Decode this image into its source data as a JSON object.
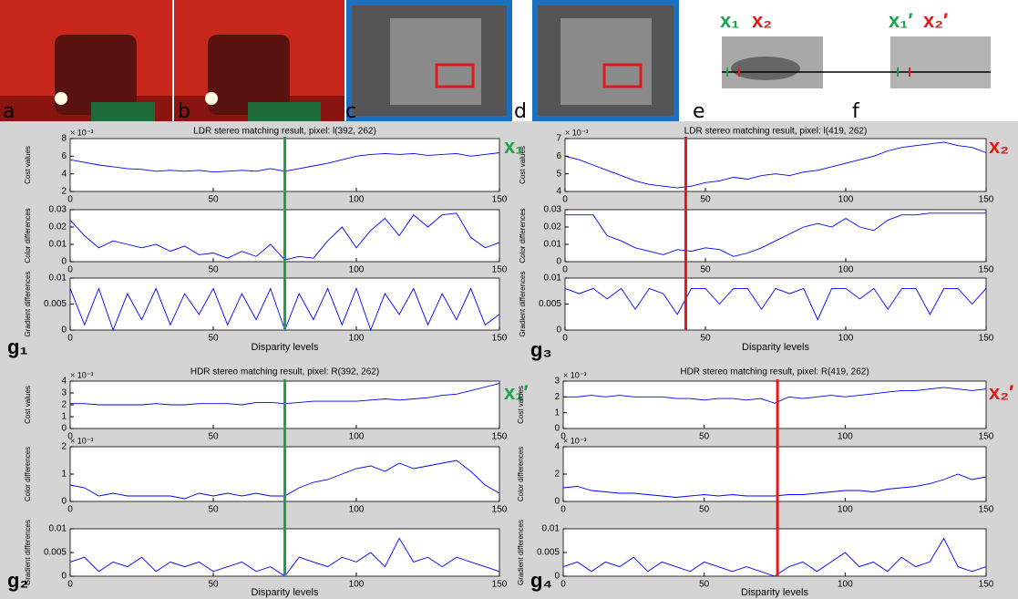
{
  "figure": {
    "image_labels": [
      "a",
      "b",
      "c",
      "d",
      "e",
      "f"
    ],
    "point_labels": [
      "x₁",
      "x₂",
      "x₁′",
      "x₂′"
    ]
  },
  "chart_data": [
    {
      "type": "line",
      "label": "g₁",
      "title": "LDR stereo matching result, pixel: l(392, 262)",
      "xlabel": "Disparity levels",
      "xlim": [
        0,
        150
      ],
      "xticks": [
        0,
        50,
        100,
        150
      ],
      "x": [
        0,
        5,
        10,
        15,
        20,
        25,
        30,
        35,
        40,
        45,
        50,
        55,
        60,
        65,
        70,
        75,
        80,
        85,
        90,
        95,
        100,
        105,
        110,
        115,
        120,
        125,
        130,
        135,
        140,
        145,
        150
      ],
      "marker": {
        "x": 75,
        "label": "x₁",
        "color": "#1aa34a"
      },
      "panels": [
        {
          "ylabel": "Cost values",
          "exponent_label": "× 10⁻³",
          "ylim": [
            2,
            8
          ],
          "yticks": [
            2,
            4,
            6,
            8
          ],
          "color": "#0000ff",
          "values": [
            5.6,
            5.3,
            5.0,
            4.8,
            4.6,
            4.5,
            4.3,
            4.4,
            4.3,
            4.4,
            4.2,
            4.3,
            4.4,
            4.3,
            4.6,
            4.3,
            4.6,
            4.9,
            5.2,
            5.6,
            6.0,
            6.2,
            6.3,
            6.2,
            6.3,
            6.1,
            6.2,
            6.3,
            6.0,
            6.2,
            6.4
          ]
        },
        {
          "ylabel": "Color differences",
          "ylim": [
            0,
            0.03
          ],
          "yticks": [
            0,
            0.01,
            0.02,
            0.03
          ],
          "color": "#0000ff",
          "values": [
            0.024,
            0.015,
            0.008,
            0.012,
            0.01,
            0.008,
            0.01,
            0.006,
            0.009,
            0.004,
            0.005,
            0.002,
            0.006,
            0.003,
            0.01,
            0.001,
            0.003,
            0.002,
            0.012,
            0.02,
            0.008,
            0.018,
            0.025,
            0.015,
            0.027,
            0.02,
            0.027,
            0.028,
            0.014,
            0.008,
            0.011
          ]
        },
        {
          "ylabel": "Gradient differences",
          "ylim": [
            0,
            0.01
          ],
          "yticks": [
            0,
            0.005,
            0.01
          ],
          "color": "#0000ff",
          "values": [
            0.008,
            0.001,
            0.008,
            0,
            0.007,
            0.002,
            0.008,
            0.001,
            0.007,
            0.003,
            0.008,
            0.001,
            0.007,
            0.002,
            0.008,
            0,
            0.007,
            0.002,
            0.008,
            0.001,
            0.008,
            0,
            0.007,
            0.003,
            0.008,
            0.001,
            0.007,
            0.002,
            0.008,
            0.001,
            0.003
          ]
        }
      ]
    },
    {
      "type": "line",
      "label": "g₃",
      "title": "LDR stereo matching result, pixel: l(419, 262)",
      "xlabel": "Disparity levels",
      "xlim": [
        0,
        150
      ],
      "xticks": [
        0,
        50,
        100,
        150
      ],
      "x": [
        0,
        5,
        10,
        15,
        20,
        25,
        30,
        35,
        40,
        45,
        50,
        55,
        60,
        65,
        70,
        75,
        80,
        85,
        90,
        95,
        100,
        105,
        110,
        115,
        120,
        125,
        130,
        135,
        140,
        145,
        150
      ],
      "marker": {
        "x": 43,
        "label": "x₂",
        "color": "#e01a1a"
      },
      "panels": [
        {
          "ylabel": "Cost values",
          "exponent_label": "× 10⁻³",
          "ylim": [
            4,
            7
          ],
          "yticks": [
            4,
            5,
            6,
            7
          ],
          "color": "#0000ff",
          "values": [
            6.0,
            5.8,
            5.5,
            5.2,
            4.9,
            4.6,
            4.4,
            4.3,
            4.2,
            4.3,
            4.5,
            4.6,
            4.8,
            4.7,
            4.9,
            5.0,
            4.9,
            5.1,
            5.2,
            5.4,
            5.6,
            5.8,
            6.0,
            6.3,
            6.5,
            6.6,
            6.7,
            6.8,
            6.6,
            6.5,
            6.2
          ]
        },
        {
          "ylabel": "Color differences",
          "ylim": [
            0,
            0.03
          ],
          "yticks": [
            0,
            0.01,
            0.02,
            0.03
          ],
          "color": "#0000ff",
          "values": [
            0.027,
            0.027,
            0.027,
            0.015,
            0.012,
            0.008,
            0.006,
            0.004,
            0.007,
            0.006,
            0.008,
            0.007,
            0.003,
            0.005,
            0.008,
            0.012,
            0.016,
            0.02,
            0.022,
            0.02,
            0.025,
            0.02,
            0.018,
            0.024,
            0.027,
            0.027,
            0.028,
            0.028,
            0.028,
            0.028,
            0.028
          ]
        },
        {
          "ylabel": "Gradient differences",
          "ylim": [
            0,
            0.01
          ],
          "yticks": [
            0,
            0.005,
            0.01
          ],
          "color": "#0000ff",
          "values": [
            0.008,
            0.007,
            0.008,
            0.006,
            0.008,
            0.004,
            0.008,
            0.007,
            0.003,
            0.008,
            0.008,
            0.005,
            0.008,
            0.008,
            0.004,
            0.008,
            0.007,
            0.008,
            0.002,
            0.008,
            0.008,
            0.006,
            0.008,
            0.004,
            0.008,
            0.008,
            0.003,
            0.008,
            0.008,
            0.005,
            0.008
          ]
        }
      ]
    },
    {
      "type": "line",
      "label": "g₂",
      "title": "HDR stereo matching result, pixel: R(392, 262)",
      "xlabel": "Disparity levels",
      "xlim": [
        0,
        150
      ],
      "xticks": [
        0,
        50,
        100,
        150
      ],
      "x": [
        0,
        5,
        10,
        15,
        20,
        25,
        30,
        35,
        40,
        45,
        50,
        55,
        60,
        65,
        70,
        75,
        80,
        85,
        90,
        95,
        100,
        105,
        110,
        115,
        120,
        125,
        130,
        135,
        140,
        145,
        150
      ],
      "marker": {
        "x": 75,
        "label": "x₁′",
        "color": "#1aa34a"
      },
      "panels": [
        {
          "ylabel": "Cost values",
          "exponent_label": "× 10⁻³",
          "ylim": [
            0,
            4
          ],
          "yticks": [
            0,
            1,
            2,
            3,
            4
          ],
          "color": "#0000ff",
          "values": [
            2.1,
            2.1,
            2.0,
            2.0,
            2.0,
            2.0,
            2.1,
            2.0,
            2.0,
            2.1,
            2.1,
            2.1,
            2.0,
            2.2,
            2.2,
            2.1,
            2.2,
            2.3,
            2.3,
            2.3,
            2.3,
            2.4,
            2.5,
            2.4,
            2.5,
            2.6,
            2.8,
            2.9,
            3.2,
            3.5,
            3.8
          ]
        },
        {
          "ylabel": "Color differences",
          "exponent_label": "× 10⁻³",
          "ylim": [
            0,
            2
          ],
          "yticks": [
            0,
            1,
            2
          ],
          "color": "#0000ff",
          "values": [
            0.6,
            0.5,
            0.2,
            0.3,
            0.2,
            0.2,
            0.2,
            0.2,
            0.1,
            0.3,
            0.2,
            0.3,
            0.2,
            0.3,
            0.2,
            0.2,
            0.5,
            0.7,
            0.8,
            1.0,
            1.2,
            1.3,
            1.1,
            1.4,
            1.2,
            1.3,
            1.4,
            1.5,
            1.1,
            0.6,
            0.3
          ]
        },
        {
          "ylabel": "Gradient differences",
          "ylim": [
            0,
            0.01
          ],
          "yticks": [
            0,
            0.005,
            0.01
          ],
          "color": "#0000ff",
          "values": [
            0.003,
            0.004,
            0.001,
            0.003,
            0.002,
            0.004,
            0.001,
            0.003,
            0.002,
            0.003,
            0.001,
            0.002,
            0.003,
            0.001,
            0.002,
            0,
            0.004,
            0.003,
            0.002,
            0.004,
            0.003,
            0.005,
            0.002,
            0.008,
            0.003,
            0.004,
            0.002,
            0.004,
            0.003,
            0.002,
            0.001
          ]
        }
      ]
    },
    {
      "type": "line",
      "label": "g₄",
      "title": "HDR stereo matching result, pixel: R(419, 262)",
      "xlabel": "Disparity levels",
      "xlim": [
        0,
        150
      ],
      "xticks": [
        0,
        50,
        100,
        150
      ],
      "x": [
        0,
        5,
        10,
        15,
        20,
        25,
        30,
        35,
        40,
        45,
        50,
        55,
        60,
        65,
        70,
        75,
        80,
        85,
        90,
        95,
        100,
        105,
        110,
        115,
        120,
        125,
        130,
        135,
        140,
        145,
        150
      ],
      "marker": {
        "x": 76,
        "label": "x₂′",
        "color": "#e01a1a"
      },
      "panels": [
        {
          "ylabel": "Cost values",
          "exponent_label": "× 10⁻³",
          "ylim": [
            0,
            3
          ],
          "yticks": [
            0,
            1,
            2,
            3
          ],
          "color": "#0000ff",
          "values": [
            2.0,
            2.0,
            2.1,
            2.0,
            2.1,
            2.0,
            2.0,
            2.0,
            1.9,
            1.9,
            1.8,
            1.9,
            1.9,
            1.8,
            1.9,
            1.6,
            2.0,
            1.9,
            2.0,
            2.1,
            2.0,
            2.1,
            2.2,
            2.3,
            2.4,
            2.4,
            2.5,
            2.6,
            2.5,
            2.4,
            2.5
          ]
        },
        {
          "ylabel": "Color differences",
          "exponent_label": "× 10⁻³",
          "ylim": [
            0,
            4
          ],
          "yticks": [
            0,
            2,
            4
          ],
          "color": "#0000ff",
          "values": [
            1.0,
            1.1,
            0.8,
            0.7,
            0.6,
            0.6,
            0.5,
            0.4,
            0.3,
            0.4,
            0.5,
            0.4,
            0.5,
            0.4,
            0.4,
            0.4,
            0.5,
            0.5,
            0.6,
            0.7,
            0.8,
            0.8,
            0.7,
            0.9,
            1.0,
            1.1,
            1.3,
            1.6,
            2.0,
            1.6,
            1.8
          ]
        },
        {
          "ylabel": "Gradient differences",
          "ylim": [
            0,
            0.01
          ],
          "yticks": [
            0,
            0.005,
            0.01
          ],
          "color": "#0000ff",
          "values": [
            0.002,
            0.003,
            0.001,
            0.003,
            0.002,
            0.004,
            0.001,
            0.003,
            0.002,
            0.001,
            0.003,
            0.002,
            0.001,
            0.002,
            0.001,
            0,
            0.002,
            0.003,
            0.001,
            0.003,
            0.005,
            0.002,
            0.003,
            0.001,
            0.004,
            0.002,
            0.003,
            0.008,
            0.002,
            0.001,
            0.002
          ]
        }
      ]
    }
  ]
}
